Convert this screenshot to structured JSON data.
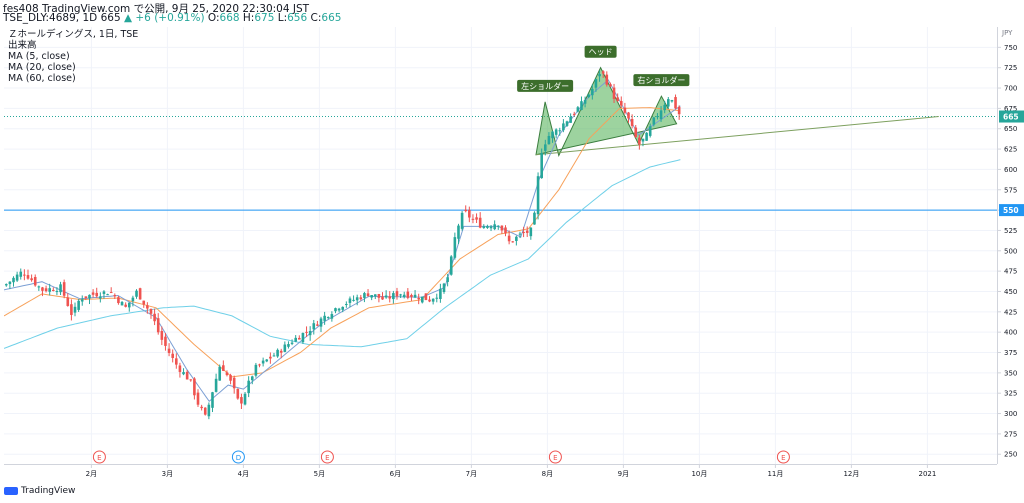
{
  "header": {
    "publish_line": "fes408 TradingView.com で公開, 9月 25, 2020 22:30:04 JST",
    "symbol": "TSE_DLY:4689, 1D",
    "last": "665",
    "change": "▲ +6 (+0.91%)",
    "o_label": "O:",
    "o": "668",
    "h_label": "H:",
    "h": "675",
    "l_label": "L:",
    "l": "656",
    "c_label": "C:",
    "c": "665"
  },
  "legend": {
    "title": "Ｚホールディングス, 1日, TSE",
    "volume": "出来高",
    "ma5": "MA (5, close)",
    "ma20": "MA (20, close)",
    "ma60": "MA (60, close)"
  },
  "colors": {
    "up": "#26a69a",
    "down": "#ef5350",
    "ma5": "#7b9fd4",
    "ma20": "#f7a15a",
    "ma60": "#6fd0e8",
    "hline": "#2196f3",
    "pattern": "#4caf50",
    "trend": "#7da05f"
  },
  "footer": {
    "brand": "TradingView"
  },
  "chart_data": {
    "type": "candlestick",
    "title": "Ｚホールディングス, 1日, TSE",
    "currency": "JPY",
    "ylim": [
      238,
      775
    ],
    "y_ticks": [
      250,
      275,
      300,
      325,
      350,
      375,
      400,
      425,
      450,
      475,
      500,
      525,
      550,
      575,
      600,
      625,
      650,
      675,
      700,
      725,
      750
    ],
    "x_ticks": [
      "2月",
      "3月",
      "4月",
      "5月",
      "6月",
      "7月",
      "8月",
      "9月",
      "10月",
      "11月",
      "12月",
      "2021"
    ],
    "current_price": 665,
    "horizontal_line": 550,
    "events": [
      {
        "date": "2月",
        "label": "E"
      },
      {
        "date": "4月",
        "label": "D"
      },
      {
        "date": "5月",
        "label": "E"
      },
      {
        "date": "8月",
        "label": "E"
      },
      {
        "date": "11月",
        "label": "E"
      }
    ],
    "annotations": [
      "左ショルダー",
      "ヘッド",
      "右ショルダー"
    ],
    "close_path": [
      {
        "m": 0.0,
        "v": 457
      },
      {
        "m": 0.25,
        "v": 475
      },
      {
        "m": 0.5,
        "v": 452
      },
      {
        "m": 0.75,
        "v": 455
      },
      {
        "m": 0.9,
        "v": 420
      },
      {
        "m": 1.0,
        "v": 442
      },
      {
        "m": 1.2,
        "v": 447
      },
      {
        "m": 1.4,
        "v": 450
      },
      {
        "m": 1.6,
        "v": 430
      },
      {
        "m": 1.75,
        "v": 450
      },
      {
        "m": 1.95,
        "v": 420
      },
      {
        "m": 2.05,
        "v": 395
      },
      {
        "m": 2.25,
        "v": 362
      },
      {
        "m": 2.45,
        "v": 340
      },
      {
        "m": 2.55,
        "v": 313
      },
      {
        "m": 2.65,
        "v": 295
      },
      {
        "m": 2.75,
        "v": 330
      },
      {
        "m": 2.85,
        "v": 362
      },
      {
        "m": 3.0,
        "v": 335
      },
      {
        "m": 3.1,
        "v": 310
      },
      {
        "m": 3.3,
        "v": 355
      },
      {
        "m": 3.6,
        "v": 375
      },
      {
        "m": 3.8,
        "v": 390
      },
      {
        "m": 4.0,
        "v": 402
      },
      {
        "m": 4.2,
        "v": 418
      },
      {
        "m": 4.4,
        "v": 432
      },
      {
        "m": 4.6,
        "v": 440
      },
      {
        "m": 4.8,
        "v": 448
      },
      {
        "m": 5.0,
        "v": 440
      },
      {
        "m": 5.2,
        "v": 448
      },
      {
        "m": 5.4,
        "v": 445
      },
      {
        "m": 5.6,
        "v": 440
      },
      {
        "m": 5.75,
        "v": 450
      },
      {
        "m": 5.85,
        "v": 470
      },
      {
        "m": 5.95,
        "v": 525
      },
      {
        "m": 6.05,
        "v": 548
      },
      {
        "m": 6.15,
        "v": 540
      },
      {
        "m": 6.3,
        "v": 530
      },
      {
        "m": 6.5,
        "v": 535
      },
      {
        "m": 6.65,
        "v": 510
      },
      {
        "m": 6.8,
        "v": 520
      },
      {
        "m": 6.95,
        "v": 525
      },
      {
        "m": 7.0,
        "v": 555
      },
      {
        "m": 7.05,
        "v": 618
      },
      {
        "m": 7.15,
        "v": 640
      },
      {
        "m": 7.3,
        "v": 650
      },
      {
        "m": 7.45,
        "v": 665
      },
      {
        "m": 7.6,
        "v": 680
      },
      {
        "m": 7.75,
        "v": 700
      },
      {
        "m": 7.85,
        "v": 722
      },
      {
        "m": 7.95,
        "v": 705
      },
      {
        "m": 8.05,
        "v": 685
      },
      {
        "m": 8.2,
        "v": 665
      },
      {
        "m": 8.35,
        "v": 630
      },
      {
        "m": 8.45,
        "v": 640
      },
      {
        "m": 8.55,
        "v": 660
      },
      {
        "m": 8.65,
        "v": 675
      },
      {
        "m": 8.75,
        "v": 690
      },
      {
        "m": 8.83,
        "v": 678
      },
      {
        "m": 8.9,
        "v": 665
      }
    ],
    "ma5_path": [
      {
        "m": 0.0,
        "v": 452
      },
      {
        "m": 0.5,
        "v": 462
      },
      {
        "m": 1.0,
        "v": 441
      },
      {
        "m": 1.5,
        "v": 445
      },
      {
        "m": 2.0,
        "v": 418
      },
      {
        "m": 2.4,
        "v": 355
      },
      {
        "m": 2.7,
        "v": 315
      },
      {
        "m": 2.95,
        "v": 335
      },
      {
        "m": 3.15,
        "v": 330
      },
      {
        "m": 3.6,
        "v": 365
      },
      {
        "m": 4.2,
        "v": 412
      },
      {
        "m": 4.8,
        "v": 444
      },
      {
        "m": 5.5,
        "v": 443
      },
      {
        "m": 5.8,
        "v": 455
      },
      {
        "m": 6.05,
        "v": 530
      },
      {
        "m": 6.5,
        "v": 530
      },
      {
        "m": 6.8,
        "v": 517
      },
      {
        "m": 7.05,
        "v": 590
      },
      {
        "m": 7.3,
        "v": 642
      },
      {
        "m": 7.7,
        "v": 690
      },
      {
        "m": 7.95,
        "v": 710
      },
      {
        "m": 8.35,
        "v": 642
      },
      {
        "m": 8.9,
        "v": 678
      }
    ],
    "ma20_path": [
      {
        "m": 0.0,
        "v": 420
      },
      {
        "m": 0.5,
        "v": 447
      },
      {
        "m": 1.0,
        "v": 440
      },
      {
        "m": 1.5,
        "v": 442
      },
      {
        "m": 2.0,
        "v": 430
      },
      {
        "m": 2.5,
        "v": 385
      },
      {
        "m": 3.0,
        "v": 345
      },
      {
        "m": 3.4,
        "v": 350
      },
      {
        "m": 3.9,
        "v": 375
      },
      {
        "m": 4.3,
        "v": 405
      },
      {
        "m": 4.8,
        "v": 430
      },
      {
        "m": 5.5,
        "v": 440
      },
      {
        "m": 6.0,
        "v": 490
      },
      {
        "m": 6.5,
        "v": 520
      },
      {
        "m": 6.9,
        "v": 527
      },
      {
        "m": 7.3,
        "v": 575
      },
      {
        "m": 7.7,
        "v": 638
      },
      {
        "m": 8.1,
        "v": 675
      },
      {
        "m": 8.5,
        "v": 676
      },
      {
        "m": 8.9,
        "v": 672
      }
    ],
    "ma60_path": [
      {
        "m": 0.0,
        "v": 380
      },
      {
        "m": 0.7,
        "v": 405
      },
      {
        "m": 1.4,
        "v": 420
      },
      {
        "m": 2.1,
        "v": 430
      },
      {
        "m": 2.5,
        "v": 432
      },
      {
        "m": 3.0,
        "v": 420
      },
      {
        "m": 3.5,
        "v": 395
      },
      {
        "m": 4.0,
        "v": 385
      },
      {
        "m": 4.7,
        "v": 382
      },
      {
        "m": 5.3,
        "v": 392
      },
      {
        "m": 5.8,
        "v": 430
      },
      {
        "m": 6.4,
        "v": 470
      },
      {
        "m": 6.9,
        "v": 490
      },
      {
        "m": 7.4,
        "v": 535
      },
      {
        "m": 8.0,
        "v": 580
      },
      {
        "m": 8.5,
        "v": 603
      },
      {
        "m": 8.9,
        "v": 612
      }
    ],
    "head_and_shoulders": [
      {
        "m": 7.0,
        "v": 618
      },
      {
        "m": 7.12,
        "v": 683
      },
      {
        "m": 7.3,
        "v": 617
      },
      {
        "m": 7.85,
        "v": 725
      },
      {
        "m": 8.35,
        "v": 631
      },
      {
        "m": 8.65,
        "v": 690
      },
      {
        "m": 8.85,
        "v": 656
      }
    ],
    "neckline": {
      "start": {
        "m": 7.0,
        "v": 618
      },
      "end": {
        "m": 12.3,
        "v": 665
      }
    }
  }
}
